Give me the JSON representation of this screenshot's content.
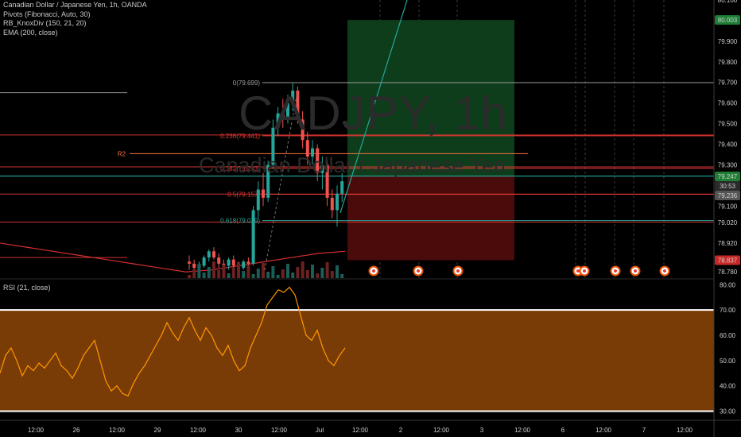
{
  "header": {
    "symbol_line": "Canadian Dollar / Japanese Yen, 1h, OANDA",
    "indicators": [
      "Pivots (Fibonacci, Auto, 30)",
      "RB_KnoxDiv (150, 21, 20)",
      "EMA (200, close)"
    ]
  },
  "watermark": {
    "title": "CADJPY, 1h",
    "subtitle": "Canadian Dollar / Japanese Yen"
  },
  "rsi": {
    "legend": "RSI (21, close)"
  },
  "colors": {
    "up": "#26a69a",
    "down": "#ef5350",
    "profit": "#0d3d1a",
    "loss": "#4a0b0b",
    "rsi_band": "#7a3c07",
    "rsi_line": "#ff9800",
    "ema": "#d32f2f",
    "fib": "#787b86"
  },
  "chart_data": [
    {
      "type": "line",
      "title": "CADJPY, 1h",
      "xlabel": "",
      "ylabel": "",
      "ylim": [
        78.75,
        80.1
      ],
      "price_ticks": [
        "80.100",
        "80.003",
        "79.900",
        "79.800",
        "79.700",
        "79.600",
        "79.500",
        "79.400",
        "79.300",
        "79.247",
        "30:53",
        "79.236",
        "79.100",
        "79.020",
        "78.920",
        "78.837",
        "78.780"
      ],
      "price_labels": [
        {
          "text": "80.003",
          "value": 80.003,
          "color": "#1e7e34"
        },
        {
          "text": "79.247",
          "value": 79.247,
          "color": "#1e7e34"
        },
        {
          "text": "30:53",
          "value": 79.2,
          "color": "#2a2a2a"
        },
        {
          "text": "79.236",
          "value": 79.236,
          "color": "#555555"
        },
        {
          "text": "78.837",
          "value": 78.837,
          "color": "#c62828"
        }
      ],
      "time_ticks": [
        "12:00",
        "26",
        "12:00",
        "29",
        "12:00",
        "30",
        "12:00",
        "Jul",
        "12:00",
        "2",
        "12:00",
        "3",
        "12:00",
        "6",
        "12:00",
        "7",
        "12:00"
      ],
      "fib_levels": [
        {
          "label": "0(79.699)",
          "value": 79.699
        },
        {
          "label": "0.236(79.441)",
          "value": 79.441
        },
        {
          "label": "0.382(79.283)",
          "value": 79.283
        },
        {
          "label": "0.5(79.157)",
          "value": 79.157
        },
        {
          "label": "0.618(79.029)",
          "value": 79.029
        }
      ],
      "pivot": {
        "label": "R2",
        "value": 79.354
      },
      "horizontal_lines": [
        79.65,
        79.445,
        79.29,
        79.245,
        79.158,
        79.022,
        78.85
      ],
      "position": {
        "entry": 79.247,
        "target": 80.003,
        "stop": 78.837
      },
      "candles": [
        {
          "o": 78.83,
          "h": 78.86,
          "l": 78.79,
          "c": 78.82
        },
        {
          "o": 78.82,
          "h": 78.84,
          "l": 78.79,
          "c": 78.8
        },
        {
          "o": 78.8,
          "h": 78.83,
          "l": 78.78,
          "c": 78.81
        },
        {
          "o": 78.81,
          "h": 78.86,
          "l": 78.8,
          "c": 78.85
        },
        {
          "o": 78.85,
          "h": 78.89,
          "l": 78.83,
          "c": 78.88
        },
        {
          "o": 78.88,
          "h": 78.9,
          "l": 78.84,
          "c": 78.85
        },
        {
          "o": 78.85,
          "h": 78.87,
          "l": 78.8,
          "c": 78.82
        },
        {
          "o": 78.82,
          "h": 78.84,
          "l": 78.79,
          "c": 78.81
        },
        {
          "o": 78.81,
          "h": 78.85,
          "l": 78.79,
          "c": 78.84
        },
        {
          "o": 78.84,
          "h": 78.86,
          "l": 78.8,
          "c": 78.81
        },
        {
          "o": 78.81,
          "h": 78.83,
          "l": 78.78,
          "c": 78.8
        },
        {
          "o": 78.8,
          "h": 78.84,
          "l": 78.79,
          "c": 78.83
        },
        {
          "o": 78.83,
          "h": 78.85,
          "l": 78.8,
          "c": 78.82
        },
        {
          "o": 78.82,
          "h": 79.1,
          "l": 78.81,
          "c": 79.08
        },
        {
          "o": 79.08,
          "h": 79.22,
          "l": 79.04,
          "c": 79.18
        },
        {
          "o": 79.18,
          "h": 79.26,
          "l": 79.1,
          "c": 79.14
        },
        {
          "o": 79.14,
          "h": 79.32,
          "l": 79.12,
          "c": 79.3
        },
        {
          "o": 79.3,
          "h": 79.52,
          "l": 79.28,
          "c": 79.48
        },
        {
          "o": 79.48,
          "h": 79.58,
          "l": 79.44,
          "c": 79.55
        },
        {
          "o": 79.55,
          "h": 79.62,
          "l": 79.48,
          "c": 79.52
        },
        {
          "o": 79.52,
          "h": 79.64,
          "l": 79.5,
          "c": 79.6
        },
        {
          "o": 79.6,
          "h": 79.7,
          "l": 79.56,
          "c": 79.66
        },
        {
          "o": 79.66,
          "h": 79.68,
          "l": 79.5,
          "c": 79.52
        },
        {
          "o": 79.52,
          "h": 79.56,
          "l": 79.38,
          "c": 79.42
        },
        {
          "o": 79.42,
          "h": 79.46,
          "l": 79.3,
          "c": 79.34
        },
        {
          "o": 79.34,
          "h": 79.42,
          "l": 79.3,
          "c": 79.38
        },
        {
          "o": 79.38,
          "h": 79.4,
          "l": 79.22,
          "c": 79.26
        },
        {
          "o": 79.26,
          "h": 79.34,
          "l": 79.18,
          "c": 79.3
        },
        {
          "o": 79.3,
          "h": 79.32,
          "l": 79.1,
          "c": 79.14
        },
        {
          "o": 79.14,
          "h": 79.18,
          "l": 79.04,
          "c": 79.08
        },
        {
          "o": 79.08,
          "h": 79.2,
          "l": 79.0,
          "c": 79.16
        },
        {
          "o": 79.16,
          "h": 79.26,
          "l": 79.12,
          "c": 79.22
        }
      ],
      "ema": [
        78.92,
        78.9,
        78.88,
        78.86,
        78.84,
        78.82,
        78.8,
        78.78,
        78.79,
        78.81,
        78.83,
        78.85,
        78.87,
        78.88
      ]
    },
    {
      "type": "area",
      "title": "RSI (21, close)",
      "ylim": [
        27,
        82
      ],
      "ticks": [
        "80.00",
        "70.00",
        "60.00",
        "50.00",
        "40.00",
        "30.00"
      ],
      "bands": [
        70,
        30
      ],
      "values": [
        45,
        52,
        55,
        50,
        44,
        48,
        46,
        49,
        47,
        50,
        53,
        48,
        46,
        43,
        47,
        52,
        55,
        58,
        50,
        42,
        38,
        40,
        37,
        36,
        41,
        45,
        48,
        52,
        56,
        60,
        65,
        61,
        58,
        63,
        67,
        62,
        58,
        63,
        60,
        55,
        52,
        56,
        50,
        46,
        48,
        55,
        60,
        65,
        72,
        75,
        78,
        77,
        79,
        76,
        68,
        60,
        58,
        62,
        55,
        50,
        48,
        52,
        55
      ]
    }
  ]
}
